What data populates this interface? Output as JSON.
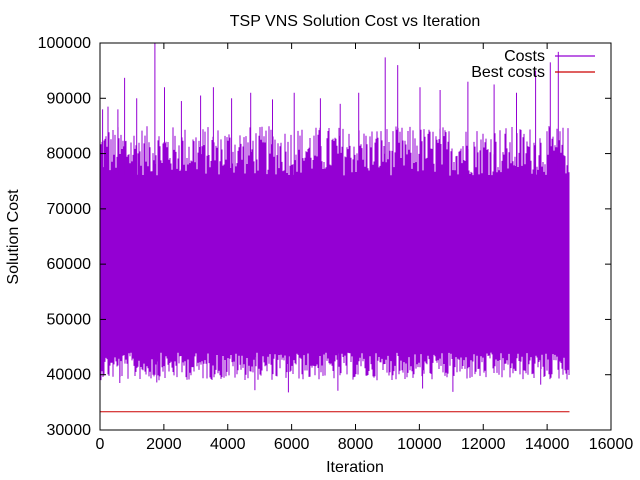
{
  "chart_data": {
    "type": "line",
    "title": "TSP VNS Solution Cost vs Iteration",
    "xlabel": "Iteration",
    "ylabel": "Solution Cost",
    "xlim": [
      0,
      16000
    ],
    "ylim": [
      30000,
      100000
    ],
    "xticks": [
      0,
      2000,
      4000,
      6000,
      8000,
      10000,
      12000,
      14000,
      16000
    ],
    "yticks": [
      30000,
      40000,
      50000,
      60000,
      70000,
      80000,
      90000,
      100000
    ],
    "grid": false,
    "legend_position": "top-right",
    "series": [
      {
        "name": "Costs",
        "color": "#9400d3",
        "description_stats": {
          "iterations": 14700,
          "band_low": 44000,
          "band_high": 76000,
          "typical_min": 39000,
          "typical_max": 85000,
          "overall_max": 100000,
          "overall_min": 37000
        },
        "spikes": [
          {
            "x": 80,
            "y": 88000
          },
          {
            "x": 250,
            "y": 88500
          },
          {
            "x": 560,
            "y": 88000
          },
          {
            "x": 770,
            "y": 93700
          },
          {
            "x": 1150,
            "y": 90000
          },
          {
            "x": 1720,
            "y": 99900
          },
          {
            "x": 2020,
            "y": 92000
          },
          {
            "x": 2550,
            "y": 89500
          },
          {
            "x": 3150,
            "y": 90500
          },
          {
            "x": 3550,
            "y": 92000
          },
          {
            "x": 4120,
            "y": 90000
          },
          {
            "x": 4720,
            "y": 91000
          },
          {
            "x": 5400,
            "y": 89800
          },
          {
            "x": 6080,
            "y": 91000
          },
          {
            "x": 6900,
            "y": 90000
          },
          {
            "x": 7520,
            "y": 89000
          },
          {
            "x": 8100,
            "y": 91000
          },
          {
            "x": 8930,
            "y": 97400
          },
          {
            "x": 9320,
            "y": 96000
          },
          {
            "x": 10020,
            "y": 92000
          },
          {
            "x": 10650,
            "y": 91500
          },
          {
            "x": 11520,
            "y": 93000
          },
          {
            "x": 12340,
            "y": 92500
          },
          {
            "x": 13040,
            "y": 91000
          },
          {
            "x": 13640,
            "y": 95000
          },
          {
            "x": 14100,
            "y": 96500
          },
          {
            "x": 14350,
            "y": 98400
          },
          {
            "x": 620,
            "y": 38500
          },
          {
            "x": 1780,
            "y": 38600
          },
          {
            "x": 4850,
            "y": 37200
          },
          {
            "x": 5900,
            "y": 36800
          },
          {
            "x": 7450,
            "y": 37100
          },
          {
            "x": 10100,
            "y": 37500
          },
          {
            "x": 11050,
            "y": 36900
          },
          {
            "x": 13800,
            "y": 38200
          }
        ]
      },
      {
        "name": "Best costs",
        "color": "#cc0000",
        "x": [
          0,
          14700
        ],
        "y": [
          33300,
          33300
        ]
      }
    ]
  }
}
